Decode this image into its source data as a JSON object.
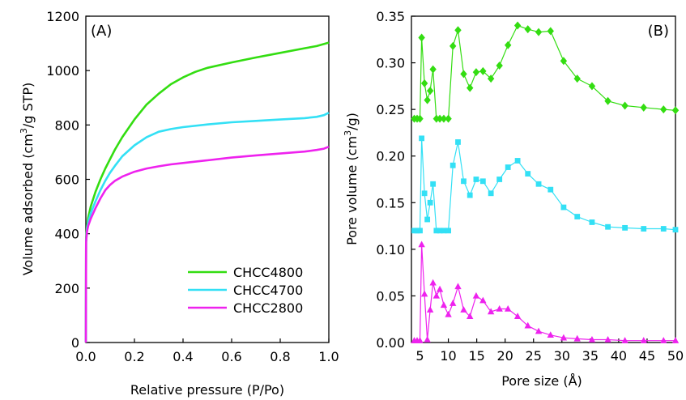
{
  "chart_data": [
    {
      "type": "line",
      "panel_label": "(A)",
      "xlabel": "Relative pressure (P/Po)",
      "ylabel_pre": "Volume adsorbed (cm",
      "ylabel_sup": "3",
      "ylabel_post": "/g STP)",
      "xlim": [
        0,
        1.0
      ],
      "ylim": [
        0,
        1200
      ],
      "xticks": [
        "0.0",
        "0.2",
        "0.4",
        "0.6",
        "0.8",
        "1.0"
      ],
      "yticks": [
        "0",
        "200",
        "400",
        "600",
        "800",
        "1000",
        "1200"
      ],
      "legend_position": "bottom-right",
      "series": [
        {
          "name": "CHCC4800",
          "color": "#33dd11",
          "x": [
            0,
            0.001,
            0.005,
            0.01,
            0.02,
            0.04,
            0.06,
            0.08,
            0.1,
            0.12,
            0.15,
            0.2,
            0.25,
            0.3,
            0.35,
            0.4,
            0.45,
            0.5,
            0.6,
            0.7,
            0.8,
            0.9,
            0.95,
            1.0
          ],
          "y": [
            0,
            380,
            430,
            460,
            500,
            555,
            600,
            640,
            675,
            710,
            755,
            820,
            875,
            915,
            950,
            975,
            995,
            1010,
            1030,
            1048,
            1065,
            1082,
            1090,
            1103
          ]
        },
        {
          "name": "CHCC4700",
          "color": "#33e0f5",
          "x": [
            0,
            0.001,
            0.005,
            0.01,
            0.02,
            0.04,
            0.06,
            0.08,
            0.1,
            0.12,
            0.15,
            0.2,
            0.25,
            0.3,
            0.35,
            0.4,
            0.5,
            0.6,
            0.7,
            0.8,
            0.9,
            0.95,
            0.98,
            1.0
          ],
          "y": [
            0,
            370,
            420,
            445,
            475,
            520,
            560,
            595,
            625,
            650,
            685,
            725,
            755,
            775,
            785,
            792,
            802,
            810,
            815,
            820,
            825,
            830,
            836,
            845
          ]
        },
        {
          "name": "CHCC2800",
          "color": "#ee22ee",
          "x": [
            0,
            0.001,
            0.005,
            0.01,
            0.02,
            0.04,
            0.06,
            0.08,
            0.1,
            0.12,
            0.15,
            0.2,
            0.25,
            0.3,
            0.35,
            0.4,
            0.5,
            0.6,
            0.7,
            0.8,
            0.9,
            0.95,
            0.98,
            1.0
          ],
          "y": [
            0,
            370,
            410,
            430,
            455,
            495,
            530,
            560,
            580,
            595,
            610,
            628,
            640,
            648,
            655,
            660,
            670,
            680,
            688,
            695,
            702,
            708,
            713,
            720
          ]
        }
      ]
    },
    {
      "type": "line",
      "panel_label": "(B)",
      "xlabel": "Pore size (Å)",
      "ylabel_pre": "Pore volume (cm",
      "ylabel_sup": "3",
      "ylabel_post": "/g)",
      "xlim": [
        3.5,
        50
      ],
      "ylim": [
        0,
        0.35
      ],
      "xticks": [
        5,
        10,
        15,
        20,
        25,
        30,
        35,
        40,
        45,
        50
      ],
      "yticks": [
        "0.00",
        "0.05",
        "0.10",
        "0.15",
        "0.20",
        "0.25",
        "0.30",
        "0.35"
      ],
      "series": [
        {
          "name": "CHCC4800",
          "color": "#33dd11",
          "marker": "diamond",
          "x": [
            4.0,
            4.5,
            5.0,
            5.3,
            5.8,
            6.3,
            6.8,
            7.3,
            7.9,
            8.5,
            9.2,
            10.0,
            10.8,
            11.7,
            12.7,
            13.8,
            14.9,
            16.1,
            17.5,
            19.0,
            20.5,
            22.2,
            24.0,
            25.9,
            28.0,
            30.3,
            32.7,
            35.3,
            38.1,
            41.1,
            44.4,
            47.9,
            50.0
          ],
          "y": [
            0.24,
            0.24,
            0.24,
            0.327,
            0.278,
            0.26,
            0.27,
            0.293,
            0.24,
            0.24,
            0.24,
            0.24,
            0.318,
            0.335,
            0.288,
            0.273,
            0.29,
            0.291,
            0.283,
            0.297,
            0.319,
            0.34,
            0.336,
            0.333,
            0.334,
            0.302,
            0.283,
            0.275,
            0.259,
            0.254,
            0.252,
            0.25,
            0.249
          ]
        },
        {
          "name": "CHCC4700",
          "color": "#33e0f5",
          "marker": "square",
          "x": [
            4.0,
            4.5,
            5.0,
            5.3,
            5.8,
            6.3,
            6.8,
            7.3,
            7.9,
            8.5,
            9.2,
            10.0,
            10.8,
            11.7,
            12.7,
            13.8,
            14.9,
            16.1,
            17.5,
            19.0,
            20.5,
            22.2,
            24.0,
            25.9,
            28.0,
            30.3,
            32.7,
            35.3,
            38.1,
            41.1,
            44.4,
            47.9,
            50.0
          ],
          "y": [
            0.12,
            0.12,
            0.12,
            0.219,
            0.16,
            0.132,
            0.15,
            0.17,
            0.12,
            0.12,
            0.12,
            0.12,
            0.19,
            0.215,
            0.173,
            0.158,
            0.175,
            0.173,
            0.16,
            0.175,
            0.188,
            0.195,
            0.181,
            0.17,
            0.164,
            0.145,
            0.135,
            0.129,
            0.124,
            0.123,
            0.122,
            0.122,
            0.121
          ]
        },
        {
          "name": "CHCC2800",
          "color": "#ee22ee",
          "marker": "triangle",
          "x": [
            4.0,
            4.5,
            5.0,
            5.3,
            5.8,
            6.3,
            6.8,
            7.3,
            7.9,
            8.5,
            9.2,
            10.0,
            10.8,
            11.7,
            12.7,
            13.8,
            14.9,
            16.1,
            17.5,
            19.0,
            20.5,
            22.2,
            24.0,
            25.9,
            28.0,
            30.3,
            32.7,
            35.3,
            38.1,
            41.1,
            44.4,
            47.9,
            50.0
          ],
          "y": [
            0.002,
            0.002,
            0.002,
            0.105,
            0.052,
            0.003,
            0.035,
            0.064,
            0.05,
            0.057,
            0.04,
            0.03,
            0.042,
            0.06,
            0.035,
            0.028,
            0.05,
            0.045,
            0.033,
            0.036,
            0.036,
            0.028,
            0.018,
            0.012,
            0.008,
            0.005,
            0.004,
            0.003,
            0.003,
            0.002,
            0.002,
            0.002,
            0.002
          ]
        }
      ]
    }
  ]
}
